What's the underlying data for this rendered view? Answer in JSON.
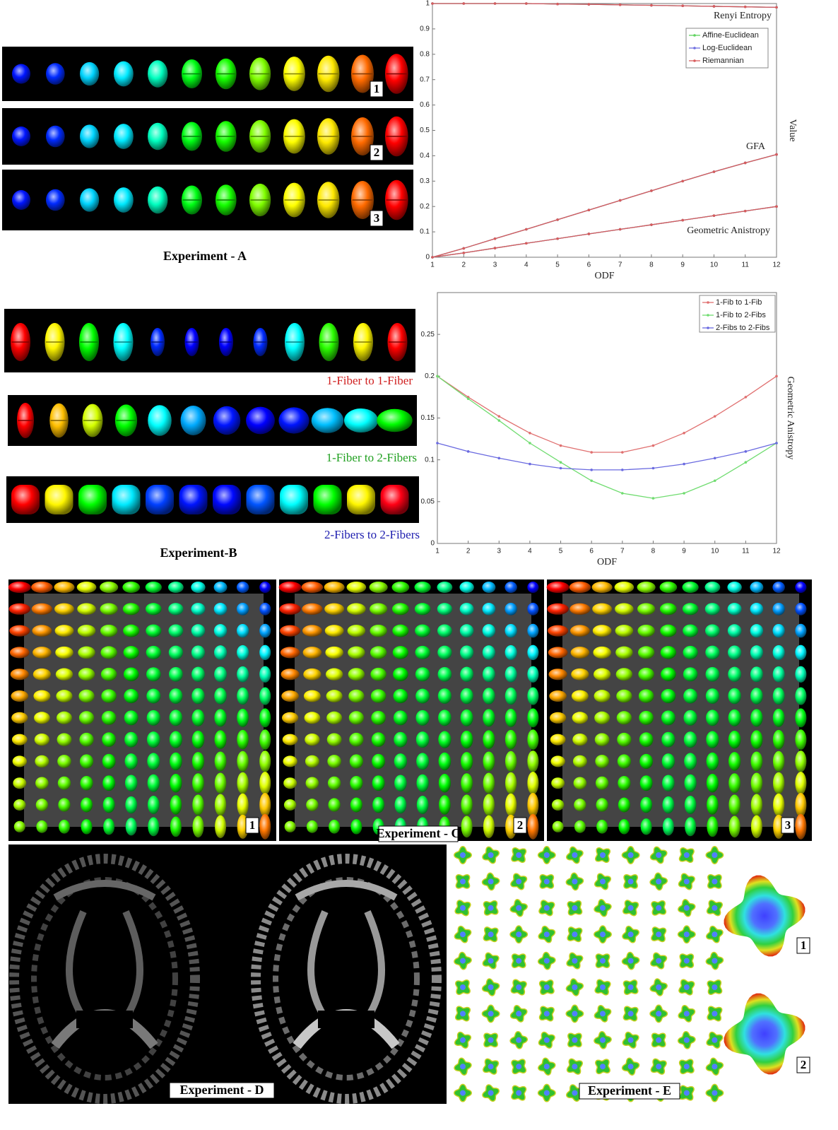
{
  "chart_data": [
    {
      "type": "line",
      "x": [
        1,
        2,
        3,
        4,
        5,
        6,
        7,
        8,
        9,
        10,
        11,
        12
      ],
      "xlim": [
        1,
        12
      ],
      "xticks": [
        1,
        2,
        3,
        4,
        5,
        6,
        7,
        8,
        9,
        10,
        11,
        12
      ],
      "ylim": [
        0,
        1
      ],
      "yticks": [
        0,
        0.1,
        0.2,
        0.3,
        0.4,
        0.5,
        0.6,
        0.7,
        0.8,
        0.9,
        1
      ],
      "xlabel": "ODF",
      "ylabel": "Value",
      "legend": "upper right",
      "series": [
        {
          "name": "Affine-Euclidean",
          "color": "#5fd35f"
        },
        {
          "name": "Log-Euclidean",
          "color": "#6f6fe0"
        },
        {
          "name": "Riemannian",
          "color": "#d85c5c"
        }
      ],
      "groups": [
        {
          "label": "Renyi Entropy",
          "values": [
            [
              1,
              1,
              1,
              1,
              0.998,
              0.997,
              0.995,
              0.993,
              0.991,
              0.989,
              0.987,
              0.985
            ],
            [
              1,
              1,
              1,
              1,
              0.998,
              0.997,
              0.995,
              0.993,
              0.991,
              0.989,
              0.987,
              0.985
            ],
            [
              1,
              1,
              1,
              1,
              0.998,
              0.997,
              0.995,
              0.993,
              0.991,
              0.989,
              0.987,
              0.985
            ]
          ]
        },
        {
          "label": "GFA",
          "values": [
            [
              0,
              0.035,
              0.073,
              0.11,
              0.148,
              0.186,
              0.224,
              0.262,
              0.3,
              0.337,
              0.372,
              0.405
            ],
            [
              0,
              0.035,
              0.073,
              0.11,
              0.148,
              0.186,
              0.224,
              0.262,
              0.3,
              0.337,
              0.372,
              0.405
            ],
            [
              0,
              0.035,
              0.073,
              0.11,
              0.148,
              0.186,
              0.224,
              0.262,
              0.3,
              0.337,
              0.372,
              0.405
            ]
          ]
        },
        {
          "label": "Geometric Anistropy",
          "values": [
            [
              0,
              0.017,
              0.036,
              0.055,
              0.073,
              0.092,
              0.11,
              0.128,
              0.146,
              0.164,
              0.182,
              0.2
            ],
            [
              0,
              0.017,
              0.036,
              0.055,
              0.073,
              0.092,
              0.11,
              0.128,
              0.146,
              0.164,
              0.182,
              0.2
            ],
            [
              0,
              0.017,
              0.036,
              0.055,
              0.073,
              0.092,
              0.11,
              0.128,
              0.146,
              0.164,
              0.182,
              0.2
            ]
          ]
        }
      ]
    },
    {
      "type": "line",
      "x": [
        1,
        2,
        3,
        4,
        5,
        6,
        7,
        8,
        9,
        10,
        11,
        12
      ],
      "xlim": [
        1,
        12
      ],
      "xticks": [
        1,
        2,
        3,
        4,
        5,
        6,
        7,
        8,
        9,
        10,
        11,
        12
      ],
      "ylim": [
        0,
        0.3
      ],
      "yticks": [
        0,
        0.05,
        0.1,
        0.15,
        0.2,
        0.25
      ],
      "xlabel": "ODF",
      "ylabel": "Geometric Anistropy",
      "legend": "upper right",
      "series": [
        {
          "name": "1-Fib to 1-Fib",
          "color": "#e07070",
          "values": [
            0.2,
            0.175,
            0.152,
            0.132,
            0.117,
            0.109,
            0.109,
            0.117,
            0.132,
            0.152,
            0.175,
            0.2
          ]
        },
        {
          "name": "1-Fib to 2-Fibs",
          "color": "#70dc70",
          "values": [
            0.2,
            0.173,
            0.147,
            0.12,
            0.097,
            0.075,
            0.06,
            0.054,
            0.06,
            0.075,
            0.097,
            0.12
          ]
        },
        {
          "name": "2-Fibs to 2-Fibs",
          "color": "#6a6ae0",
          "values": [
            0.12,
            0.11,
            0.102,
            0.095,
            0.09,
            0.088,
            0.088,
            0.09,
            0.095,
            0.102,
            0.11,
            0.12
          ]
        }
      ]
    }
  ],
  "panels": {
    "experiment_a": {
      "title": "Experiment - A",
      "labels": [
        "1",
        "2",
        "3"
      ]
    },
    "experiment_b": {
      "title": "Experiment-B",
      "rows": [
        "1-Fiber to 1-Fiber",
        "1-Fiber to 2-Fibers",
        "2-Fibers to 2-Fibers"
      ]
    },
    "experiment_c": {
      "title": "Experiment - C",
      "labels": [
        "1",
        "2",
        "3"
      ]
    },
    "experiment_d": {
      "title": "Experiment - D"
    },
    "experiment_e": {
      "title": "Experiment - E",
      "labels": [
        "1",
        "2"
      ]
    }
  }
}
